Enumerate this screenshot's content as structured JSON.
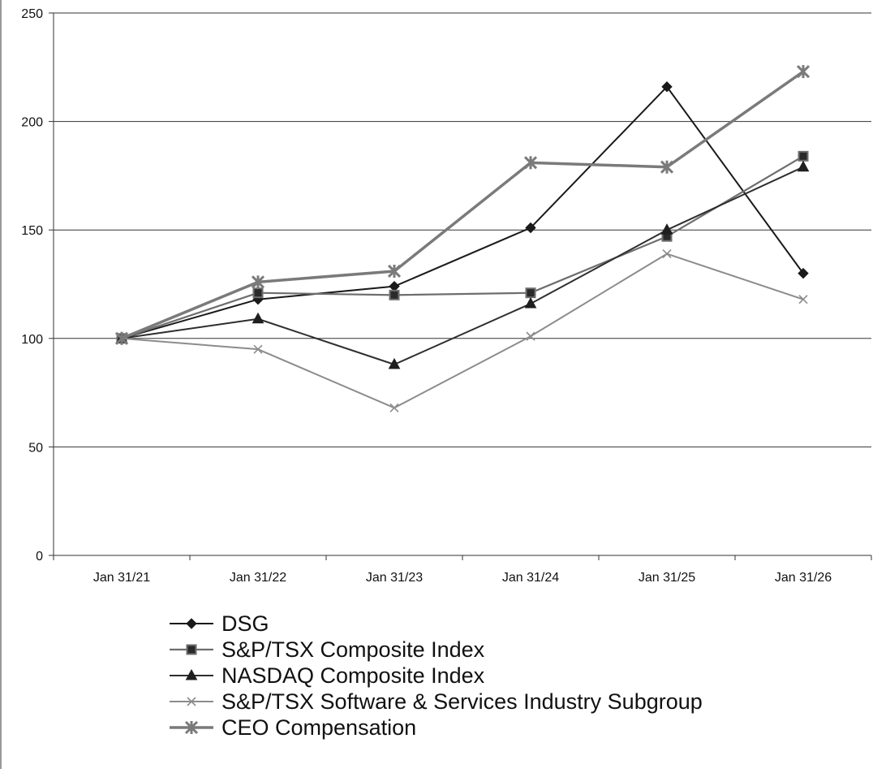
{
  "chart_data": {
    "type": "line",
    "categories": [
      "Jan 31/21",
      "Jan 31/22",
      "Jan 31/23",
      "Jan 31/24",
      "Jan 31/25",
      "Jan 31/26"
    ],
    "ylim": [
      0,
      250
    ],
    "yticks": [
      0,
      50,
      100,
      150,
      200,
      250
    ],
    "grid": true,
    "legend_position": "bottom",
    "series": [
      {
        "name": "DSG",
        "marker": "diamond",
        "color": "#1a1a1a",
        "values": [
          100,
          118,
          124,
          151,
          216,
          130
        ]
      },
      {
        "name": "S&P/TSX Composite Index",
        "marker": "square",
        "color": "#6e6e6e",
        "values": [
          100,
          121,
          120,
          121,
          147,
          184
        ]
      },
      {
        "name": "NASDAQ Composite Index",
        "marker": "triangle",
        "color": "#2e2e2e",
        "values": [
          100,
          109,
          88,
          116,
          150,
          179
        ]
      },
      {
        "name": "S&P/TSX Software & Services Industry Subgroup",
        "marker": "x",
        "color": "#8c8c8c",
        "values": [
          100,
          95,
          68,
          101,
          139,
          118
        ]
      },
      {
        "name": "CEO Compensation",
        "marker": "asterisk",
        "color": "#7a7a7a",
        "values": [
          100,
          126,
          131,
          181,
          179,
          223
        ]
      }
    ]
  }
}
